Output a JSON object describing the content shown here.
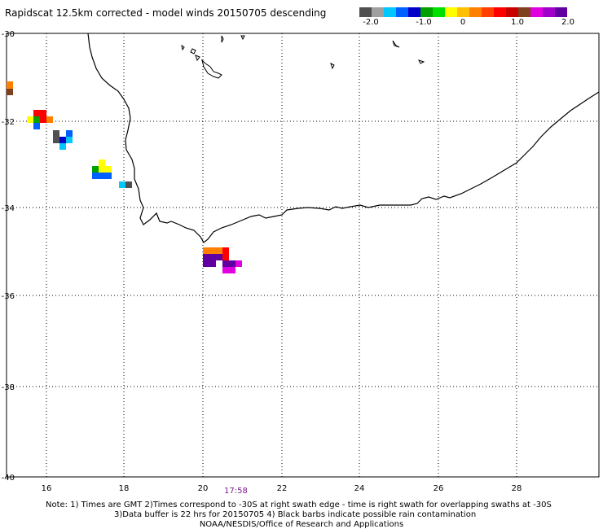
{
  "title": "Rapidscat 12.5km corrected - model winds 20150705 descending",
  "legend": {
    "colors": [
      "#505050",
      "#a0a0a0",
      "#00c8ff",
      "#0060ff",
      "#0000c8",
      "#00a000",
      "#00e000",
      "#ffff00",
      "#ffc000",
      "#ff8000",
      "#ff4000",
      "#ff0000",
      "#c80000",
      "#804020",
      "#e000e0",
      "#a000c8",
      "#6000a0"
    ],
    "tick_labels": [
      "-2.0",
      "-1.0",
      "0",
      "1.0",
      "2.0"
    ]
  },
  "axes": {
    "x_tick_labels": [
      "16",
      "18",
      "20",
      "22",
      "24",
      "26",
      "28"
    ],
    "y_tick_labels": [
      "-30",
      "-32",
      "-34",
      "-36",
      "-38",
      "-40"
    ]
  },
  "time_label": "17:58",
  "notes": {
    "line1": "Note: 1) Times are GMT 2)Times correspond to -30S at right swath edge - time is right swath for overlapping swaths at -30S",
    "line2": "3)Data buffer is 22 hrs for 20150705 4) Black barbs indicate possible rain contamination",
    "line3": "NOAA/NESDIS/Office of Research and Applications"
  }
}
